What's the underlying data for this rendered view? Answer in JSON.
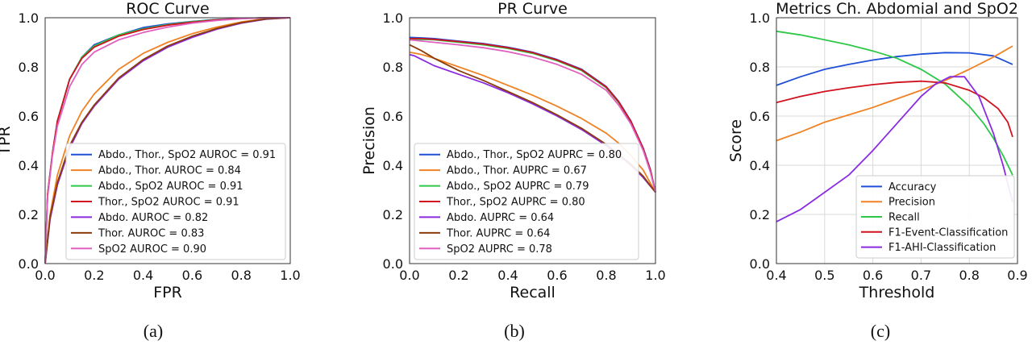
{
  "colors": {
    "blue": "#1f4fd6",
    "orange": "#f08224",
    "green": "#2ec848",
    "red": "#d0121f",
    "purple": "#8a2be2",
    "brown": "#8c3c0a",
    "pink": "#e060c0"
  },
  "captions": [
    "(a)",
    "(b)",
    "(c)"
  ],
  "chart_data": [
    {
      "type": "line",
      "title": "ROC Curve",
      "xlabel": "FPR",
      "ylabel": "TPR",
      "xlim": [
        0.0,
        1.0
      ],
      "ylim": [
        0.0,
        1.0
      ],
      "xticks": [
        "0.0",
        "0.2",
        "0.4",
        "0.6",
        "0.8",
        "1.0"
      ],
      "yticks": [
        "0.0",
        "0.2",
        "0.4",
        "0.6",
        "0.8",
        "1.0"
      ],
      "grid": false,
      "legend_position": "lower-right",
      "series": [
        {
          "name": "Abdo., Thor., SpO2 AUROC = 0.91",
          "color": "blue",
          "x": [
            0,
            0.01,
            0.03,
            0.05,
            0.1,
            0.15,
            0.2,
            0.3,
            0.4,
            0.5,
            0.6,
            0.7,
            0.8,
            0.9,
            1.0
          ],
          "y": [
            0,
            0.28,
            0.45,
            0.58,
            0.75,
            0.84,
            0.89,
            0.93,
            0.96,
            0.975,
            0.985,
            0.993,
            0.997,
            1.0,
            1.0
          ]
        },
        {
          "name": "Abdo., Thor. AUROC = 0.84",
          "color": "orange",
          "x": [
            0,
            0.02,
            0.05,
            0.1,
            0.15,
            0.2,
            0.3,
            0.4,
            0.5,
            0.6,
            0.7,
            0.8,
            0.9,
            1.0
          ],
          "y": [
            0,
            0.2,
            0.36,
            0.52,
            0.62,
            0.69,
            0.79,
            0.855,
            0.9,
            0.935,
            0.962,
            0.983,
            0.996,
            1.0
          ]
        },
        {
          "name": "Abdo., SpO2 AUROC = 0.91",
          "color": "green",
          "x": [
            0,
            0.01,
            0.03,
            0.05,
            0.1,
            0.15,
            0.2,
            0.3,
            0.4,
            0.5,
            0.6,
            0.7,
            0.8,
            0.9,
            1.0
          ],
          "y": [
            0,
            0.28,
            0.45,
            0.58,
            0.75,
            0.84,
            0.885,
            0.93,
            0.955,
            0.972,
            0.984,
            0.992,
            0.997,
            1.0,
            1.0
          ]
        },
        {
          "name": "Thor., SpO2 AUROC = 0.91",
          "color": "red",
          "x": [
            0,
            0.01,
            0.03,
            0.05,
            0.1,
            0.15,
            0.2,
            0.3,
            0.4,
            0.5,
            0.6,
            0.7,
            0.8,
            0.9,
            1.0
          ],
          "y": [
            0,
            0.28,
            0.45,
            0.58,
            0.75,
            0.835,
            0.88,
            0.925,
            0.952,
            0.97,
            0.982,
            0.991,
            0.997,
            1.0,
            1.0
          ]
        },
        {
          "name": "Abdo. AUROC = 0.82",
          "color": "purple",
          "x": [
            0,
            0.02,
            0.05,
            0.1,
            0.15,
            0.2,
            0.3,
            0.4,
            0.5,
            0.6,
            0.7,
            0.8,
            0.9,
            1.0
          ],
          "y": [
            0,
            0.18,
            0.32,
            0.47,
            0.57,
            0.64,
            0.75,
            0.825,
            0.88,
            0.92,
            0.953,
            0.978,
            0.994,
            1.0
          ]
        },
        {
          "name": "Thor. AUROC = 0.83",
          "color": "brown",
          "x": [
            0,
            0.02,
            0.05,
            0.1,
            0.15,
            0.2,
            0.3,
            0.4,
            0.5,
            0.6,
            0.7,
            0.8,
            0.9,
            1.0
          ],
          "y": [
            0,
            0.19,
            0.33,
            0.48,
            0.575,
            0.645,
            0.755,
            0.83,
            0.885,
            0.925,
            0.956,
            0.98,
            0.995,
            1.0
          ]
        },
        {
          "name": "SpO2 AUROC = 0.90",
          "color": "pink",
          "x": [
            0,
            0.01,
            0.03,
            0.05,
            0.1,
            0.15,
            0.2,
            0.3,
            0.4,
            0.5,
            0.6,
            0.7,
            0.8,
            0.9,
            1.0
          ],
          "y": [
            0,
            0.27,
            0.44,
            0.56,
            0.72,
            0.81,
            0.86,
            0.91,
            0.94,
            0.962,
            0.978,
            0.989,
            0.996,
            1.0,
            1.0
          ]
        }
      ]
    },
    {
      "type": "line",
      "title": "PR Curve",
      "xlabel": "Recall",
      "ylabel": "Precision",
      "xlim": [
        0.0,
        1.0
      ],
      "ylim": [
        0.0,
        1.0
      ],
      "xticks": [
        "0.0",
        "0.2",
        "0.4",
        "0.6",
        "0.8",
        "1.0"
      ],
      "yticks": [
        "0.0",
        "0.2",
        "0.4",
        "0.6",
        "0.8",
        "1.0"
      ],
      "grid": false,
      "legend_position": "lower-left",
      "series": [
        {
          "name": "Abdo., Thor., SpO2 AUPRC = 0.80",
          "color": "blue",
          "x": [
            0,
            0.05,
            0.1,
            0.2,
            0.3,
            0.4,
            0.5,
            0.6,
            0.7,
            0.8,
            0.85,
            0.9,
            0.95,
            0.98,
            1.0
          ],
          "y": [
            0.92,
            0.918,
            0.915,
            0.905,
            0.895,
            0.88,
            0.86,
            0.83,
            0.79,
            0.72,
            0.66,
            0.58,
            0.47,
            0.38,
            0.29
          ]
        },
        {
          "name": "Abdo., Thor. AUPRC = 0.67",
          "color": "orange",
          "x": [
            0,
            0.05,
            0.1,
            0.2,
            0.3,
            0.4,
            0.5,
            0.6,
            0.7,
            0.8,
            0.85,
            0.9,
            0.95,
            1.0
          ],
          "y": [
            0.86,
            0.85,
            0.835,
            0.8,
            0.765,
            0.725,
            0.685,
            0.64,
            0.59,
            0.53,
            0.49,
            0.44,
            0.38,
            0.29
          ]
        },
        {
          "name": "Abdo., SpO2 AUPRC = 0.79",
          "color": "green",
          "x": [
            0,
            0.05,
            0.1,
            0.2,
            0.3,
            0.4,
            0.5,
            0.6,
            0.7,
            0.8,
            0.85,
            0.9,
            0.95,
            0.98,
            1.0
          ],
          "y": [
            0.91,
            0.912,
            0.91,
            0.9,
            0.89,
            0.875,
            0.855,
            0.825,
            0.785,
            0.715,
            0.655,
            0.575,
            0.465,
            0.375,
            0.29
          ]
        },
        {
          "name": "Thor., SpO2 AUPRC = 0.80",
          "color": "red",
          "x": [
            0,
            0.05,
            0.1,
            0.2,
            0.3,
            0.4,
            0.5,
            0.6,
            0.7,
            0.8,
            0.85,
            0.9,
            0.95,
            0.98,
            1.0
          ],
          "y": [
            0.915,
            0.915,
            0.912,
            0.903,
            0.893,
            0.878,
            0.858,
            0.828,
            0.788,
            0.718,
            0.658,
            0.578,
            0.468,
            0.378,
            0.29
          ]
        },
        {
          "name": "Abdo. AUPRC = 0.64",
          "color": "purple",
          "x": [
            0,
            0.02,
            0.05,
            0.1,
            0.2,
            0.3,
            0.4,
            0.5,
            0.6,
            0.7,
            0.8,
            0.85,
            0.9,
            0.95,
            1.0
          ],
          "y": [
            0.85,
            0.845,
            0.83,
            0.805,
            0.77,
            0.735,
            0.695,
            0.65,
            0.6,
            0.545,
            0.48,
            0.44,
            0.4,
            0.35,
            0.29
          ]
        },
        {
          "name": "Thor. AUPRC = 0.64",
          "color": "brown",
          "x": [
            0,
            0.02,
            0.05,
            0.1,
            0.2,
            0.3,
            0.4,
            0.5,
            0.6,
            0.7,
            0.8,
            0.85,
            0.9,
            0.95,
            1.0
          ],
          "y": [
            0.89,
            0.88,
            0.865,
            0.835,
            0.785,
            0.745,
            0.7,
            0.655,
            0.605,
            0.55,
            0.485,
            0.445,
            0.405,
            0.355,
            0.29
          ]
        },
        {
          "name": "SpO2 AUPRC = 0.78",
          "color": "pink",
          "x": [
            0,
            0.05,
            0.1,
            0.2,
            0.3,
            0.4,
            0.5,
            0.6,
            0.7,
            0.8,
            0.85,
            0.9,
            0.95,
            0.98,
            1.0
          ],
          "y": [
            0.91,
            0.905,
            0.9,
            0.89,
            0.878,
            0.862,
            0.84,
            0.81,
            0.77,
            0.705,
            0.645,
            0.568,
            0.46,
            0.37,
            0.29
          ]
        }
      ]
    },
    {
      "type": "line",
      "title": "Metrics Ch. Abdomial and SpO2",
      "xlabel": "Threshold",
      "ylabel": "Score",
      "xlim": [
        0.4,
        0.9
      ],
      "ylim": [
        0.0,
        1.0
      ],
      "xticks": [
        "0.4",
        "0.5",
        "0.6",
        "0.7",
        "0.8",
        "0.9"
      ],
      "yticks": [
        "0.0",
        "0.2",
        "0.4",
        "0.6",
        "0.8",
        "1.0"
      ],
      "grid": true,
      "legend_position": "lower-right",
      "series": [
        {
          "name": "Accuracy",
          "color": "blue",
          "x": [
            0.4,
            0.45,
            0.5,
            0.55,
            0.6,
            0.65,
            0.7,
            0.75,
            0.8,
            0.85,
            0.89
          ],
          "y": [
            0.725,
            0.76,
            0.79,
            0.81,
            0.828,
            0.842,
            0.852,
            0.858,
            0.857,
            0.845,
            0.81
          ]
        },
        {
          "name": "Precision",
          "color": "orange",
          "x": [
            0.4,
            0.45,
            0.5,
            0.55,
            0.6,
            0.65,
            0.7,
            0.75,
            0.8,
            0.85,
            0.89
          ],
          "y": [
            0.5,
            0.535,
            0.575,
            0.605,
            0.635,
            0.67,
            0.705,
            0.745,
            0.79,
            0.84,
            0.885
          ]
        },
        {
          "name": "Recall",
          "color": "green",
          "x": [
            0.4,
            0.45,
            0.5,
            0.55,
            0.6,
            0.65,
            0.7,
            0.75,
            0.8,
            0.83,
            0.85,
            0.87,
            0.89
          ],
          "y": [
            0.945,
            0.93,
            0.91,
            0.89,
            0.865,
            0.835,
            0.79,
            0.73,
            0.64,
            0.57,
            0.51,
            0.44,
            0.36
          ]
        },
        {
          "name": "F1-Event-Classification",
          "color": "red",
          "x": [
            0.4,
            0.45,
            0.5,
            0.55,
            0.6,
            0.65,
            0.7,
            0.75,
            0.8,
            0.83,
            0.86,
            0.88,
            0.89
          ],
          "y": [
            0.655,
            0.68,
            0.7,
            0.715,
            0.728,
            0.737,
            0.742,
            0.735,
            0.705,
            0.675,
            0.63,
            0.575,
            0.515
          ]
        },
        {
          "name": "F1-AHI-Classification",
          "color": "purple",
          "x": [
            0.4,
            0.45,
            0.5,
            0.55,
            0.6,
            0.65,
            0.7,
            0.73,
            0.76,
            0.79,
            0.82,
            0.85,
            0.87,
            0.89
          ],
          "y": [
            0.17,
            0.22,
            0.29,
            0.36,
            0.46,
            0.57,
            0.68,
            0.73,
            0.76,
            0.76,
            0.68,
            0.53,
            0.4,
            0.25
          ]
        }
      ]
    }
  ]
}
